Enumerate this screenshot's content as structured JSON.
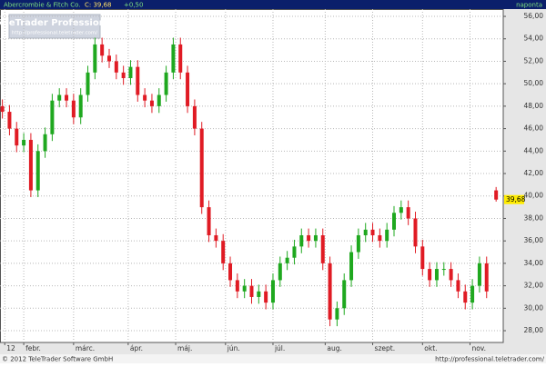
{
  "chart_data": {
    "type": "candlestick",
    "title": "Abercrombie & Fitch Co.",
    "close_text": "C: 39,68",
    "change_text": "+0,50",
    "period": "naponta",
    "watermark": "TeleTrader Professional",
    "watermark_url": "http://professional.teletrader.com/",
    "footer_left": "© 2012 TeleTrader Software GmbH",
    "footer_right": "http://professional.teletrader.com/",
    "last_price_label": "39,68",
    "up_color": "#1fa81f",
    "down_color": "#e01b24",
    "grid": true,
    "x": [
      0,
      3,
      6,
      9,
      12,
      15,
      18,
      21,
      24,
      27,
      30,
      33,
      36,
      39,
      42,
      45,
      48,
      51,
      54,
      57,
      60,
      63,
      66,
      69,
      72,
      75,
      78,
      81,
      84,
      87,
      90,
      93,
      96,
      99,
      102,
      105,
      108,
      111,
      114,
      117,
      120,
      123,
      126,
      129,
      132,
      135,
      138,
      141,
      144,
      147,
      150,
      153,
      156,
      159,
      162,
      165,
      168,
      171,
      174,
      177,
      180,
      183,
      186,
      189,
      192,
      195,
      198,
      201,
      204,
      208
    ],
    "open": [
      48,
      47.5,
      46,
      44.5,
      45,
      40.5,
      44,
      45.5,
      48.5,
      49,
      48.5,
      47,
      49,
      51,
      53.5,
      52.5,
      52,
      51,
      50.5,
      51.5,
      49,
      48.5,
      48,
      49,
      51,
      53.5,
      51,
      48,
      46,
      39,
      36.5,
      36,
      34,
      32.5,
      31.5,
      32,
      31,
      31.5,
      30.5,
      32.5,
      34,
      34.5,
      35.5,
      36.5,
      36,
      36.5,
      34,
      29,
      30,
      32.5,
      35,
      36.5,
      37,
      36.5,
      36,
      37,
      38.5,
      39,
      38,
      35.5,
      33.5,
      32.5,
      33.5,
      33.5,
      32.5,
      31.5,
      30.5,
      32,
      34,
      40.5
    ],
    "high": [
      48.6,
      48.1,
      46.6,
      45.6,
      45.6,
      44.6,
      46.1,
      49.1,
      49.6,
      49.6,
      49.1,
      49.6,
      51.6,
      54.1,
      54.1,
      53.1,
      52.6,
      51.6,
      52.1,
      52.1,
      49.6,
      49.1,
      49.6,
      51.6,
      54.1,
      54.1,
      51.6,
      48.6,
      46.6,
      39.6,
      37.1,
      36.6,
      34.6,
      33.1,
      32.6,
      32.6,
      32.1,
      32.1,
      33.1,
      34.6,
      35.1,
      36.1,
      37.1,
      37.1,
      37.1,
      37.1,
      34.6,
      30.6,
      33.1,
      35.6,
      37.1,
      37.6,
      37.6,
      37.1,
      37.6,
      39.1,
      39.6,
      39.6,
      38.6,
      36.1,
      34.1,
      34.1,
      34.1,
      34.1,
      33.1,
      32.1,
      32.6,
      34.6,
      34.6,
      40.8
    ],
    "low": [
      46.9,
      45.4,
      43.9,
      43.9,
      39.9,
      39.9,
      43.4,
      44.9,
      47.9,
      47.9,
      46.4,
      46.4,
      48.4,
      50.4,
      51.9,
      51.4,
      50.4,
      49.9,
      49.9,
      48.4,
      47.9,
      47.4,
      47.4,
      48.4,
      50.4,
      50.4,
      47.4,
      45.4,
      38.4,
      35.9,
      35.4,
      33.4,
      31.9,
      30.9,
      30.9,
      30.4,
      30.4,
      29.9,
      29.9,
      31.9,
      33.4,
      33.9,
      34.9,
      35.4,
      35.4,
      33.4,
      28.4,
      28.4,
      29.4,
      31.9,
      34.4,
      35.9,
      35.9,
      35.4,
      35.4,
      36.4,
      37.9,
      37.4,
      34.9,
      32.9,
      31.9,
      31.9,
      32.9,
      31.9,
      30.9,
      29.9,
      29.9,
      31.4,
      30.9,
      39.5
    ],
    "close": [
      47.5,
      46,
      44.5,
      45,
      40.5,
      44,
      45.5,
      48.5,
      49,
      48.5,
      47,
      49,
      51,
      53.5,
      52.5,
      52,
      51,
      50.5,
      51.5,
      49,
      48.5,
      48,
      49,
      51,
      53.5,
      51,
      48,
      46,
      39,
      36.5,
      36,
      34,
      32.5,
      31.5,
      32,
      31,
      31.5,
      30.5,
      32.5,
      34,
      34.5,
      35.5,
      36.5,
      36,
      36.5,
      34,
      29,
      30,
      32.5,
      35,
      36.5,
      37,
      36.5,
      36,
      37,
      38.5,
      39,
      38,
      35.5,
      33.5,
      32.5,
      33.5,
      33.5,
      32.5,
      31.5,
      30.5,
      32,
      34,
      31.5,
      39.68
    ],
    "xlim": [
      -1,
      211
    ],
    "xticks": [
      {
        "value": 1,
        "label": "12"
      },
      {
        "value": 9,
        "label": "febr."
      },
      {
        "value": 30,
        "label": "márc."
      },
      {
        "value": 53,
        "label": "ápr."
      },
      {
        "value": 73,
        "label": "máj."
      },
      {
        "value": 94,
        "label": "jún."
      },
      {
        "value": 114,
        "label": "júl."
      },
      {
        "value": 136,
        "label": "aug."
      },
      {
        "value": 156,
        "label": "szept."
      },
      {
        "value": 177,
        "label": "okt."
      },
      {
        "value": 197,
        "label": "nov."
      }
    ],
    "ylim": [
      26.95,
      56.65
    ],
    "yticks": [
      {
        "value": 28,
        "label": "28,00"
      },
      {
        "value": 30,
        "label": "30,00"
      },
      {
        "value": 32,
        "label": "32,00"
      },
      {
        "value": 34,
        "label": "34,00"
      },
      {
        "value": 36,
        "label": "36,00"
      },
      {
        "value": 38,
        "label": "38,00"
      },
      {
        "value": 40,
        "label": "40,00"
      },
      {
        "value": 42,
        "label": "42,00"
      },
      {
        "value": 44,
        "label": "44,00"
      },
      {
        "value": 46,
        "label": "46,00"
      },
      {
        "value": 48,
        "label": "48,00"
      },
      {
        "value": 50,
        "label": "50,00"
      },
      {
        "value": 52,
        "label": "52,00"
      },
      {
        "value": 54,
        "label": "54,00"
      },
      {
        "value": 56,
        "label": "56,00"
      }
    ]
  }
}
